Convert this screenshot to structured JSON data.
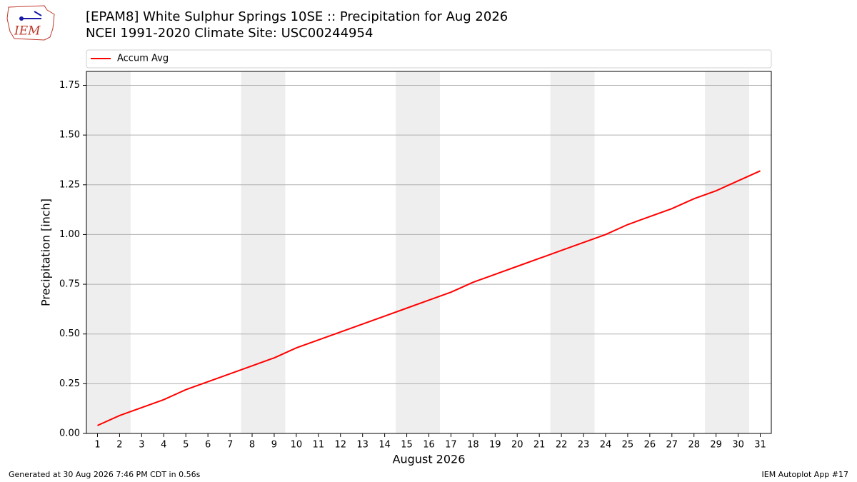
{
  "logo_text": "IEM",
  "footer_left": "Generated at 30 Aug 2026 7:46 PM CDT in 0.56s",
  "footer_right": "IEM Autoplot App #17",
  "chart_data": {
    "type": "line",
    "title": "[EPAM8] White Sulphur Springs 10SE :: Precipitation for Aug 2026",
    "subtitle": "NCEI 1991-2020 Climate Site: USC00244954",
    "xlabel": "August 2026",
    "ylabel": "Precipitation [inch]",
    "x": [
      1,
      2,
      3,
      4,
      5,
      6,
      7,
      8,
      9,
      10,
      11,
      12,
      13,
      14,
      15,
      16,
      17,
      18,
      19,
      20,
      21,
      22,
      23,
      24,
      25,
      26,
      27,
      28,
      29,
      30,
      31
    ],
    "series": [
      {
        "name": "Accum Avg",
        "color": "#ff0000",
        "values": [
          0.04,
          0.09,
          0.13,
          0.17,
          0.22,
          0.26,
          0.3,
          0.34,
          0.38,
          0.43,
          0.47,
          0.51,
          0.55,
          0.59,
          0.63,
          0.67,
          0.71,
          0.76,
          0.8,
          0.84,
          0.88,
          0.92,
          0.96,
          1.0,
          1.05,
          1.09,
          1.13,
          1.18,
          1.22,
          1.27,
          1.32
        ]
      }
    ],
    "xlim": [
      0.5,
      31.5
    ],
    "xticks": [
      1,
      2,
      3,
      4,
      5,
      6,
      7,
      8,
      9,
      10,
      11,
      12,
      13,
      14,
      15,
      16,
      17,
      18,
      19,
      20,
      21,
      22,
      23,
      24,
      25,
      26,
      27,
      28,
      29,
      30,
      31
    ],
    "ylim": [
      0,
      1.82
    ],
    "yticks": [
      {
        "value": 0,
        "label": "0.00"
      },
      {
        "value": 0.25,
        "label": "0.25"
      },
      {
        "value": 0.5,
        "label": "0.50"
      },
      {
        "value": 0.75,
        "label": "0.75"
      },
      {
        "value": 1,
        "label": "1.00"
      },
      {
        "value": 1.25,
        "label": "1.25"
      },
      {
        "value": 1.5,
        "label": "1.50"
      },
      {
        "value": 1.75,
        "label": "1.75"
      }
    ],
    "shaded_spans": [
      [
        0.5,
        2.5
      ],
      [
        7.5,
        9.5
      ],
      [
        14.5,
        16.5
      ],
      [
        21.5,
        23.5
      ],
      [
        28.5,
        30.5
      ]
    ],
    "shade_color": "#eeeeee",
    "grid": true,
    "legend": "top"
  }
}
